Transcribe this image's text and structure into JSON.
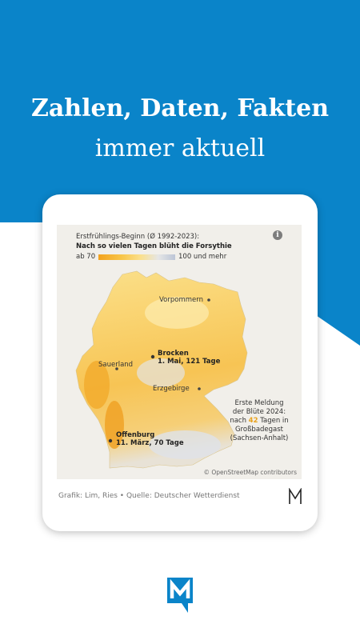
{
  "headline": {
    "title": "Zahlen, Daten, Fakten",
    "subtitle": "immer aktuell"
  },
  "colors": {
    "brand_blue": "#0a84c9",
    "highlight_orange": "#e8a11b"
  },
  "map": {
    "legend_title": "Erstfrühlings-Beginn (Ø 1992-2023):",
    "legend_subtitle": "Nach so vielen Tagen blüht die Forsythie",
    "legend_min": "ab 70",
    "legend_max": "100 und mehr",
    "info_icon": "info-icon",
    "places": {
      "vorpommern": "Vorpommern",
      "sauerland": "Sauerland",
      "erzgebirge": "Erzgebirge",
      "brocken_name": "Brocken",
      "brocken_value": "1. Mai, 121 Tage",
      "offenburg_name": "Offenburg",
      "offenburg_value": "11. März, 70 Tage"
    },
    "note": {
      "line1": "Erste Meldung",
      "line2": "der Blüte 2024:",
      "line3_pre": "nach ",
      "line3_num": "42",
      "line3_post": " Tagen in",
      "line4": "Großbadegast",
      "line5": "(Sachsen-Anhalt)"
    },
    "attribution": "© OpenStreetMap contributors"
  },
  "source": "Grafik: Lim, Ries • Quelle: Deutscher Wetterdienst"
}
